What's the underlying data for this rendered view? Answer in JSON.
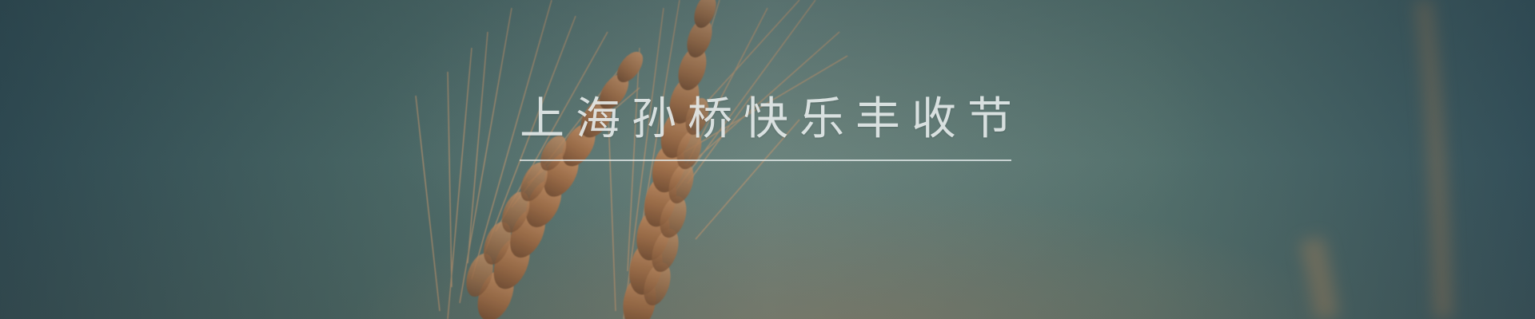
{
  "banner": {
    "title": "上海孙桥快乐丰收节",
    "background_image": "wheat-ears-icon",
    "colors": {
      "sky_left": "#2f4a52",
      "sky_center": "#6a8580",
      "sky_right": "#34505a",
      "wheat": "#b8845a",
      "title_text": "#ebf0f0"
    }
  }
}
